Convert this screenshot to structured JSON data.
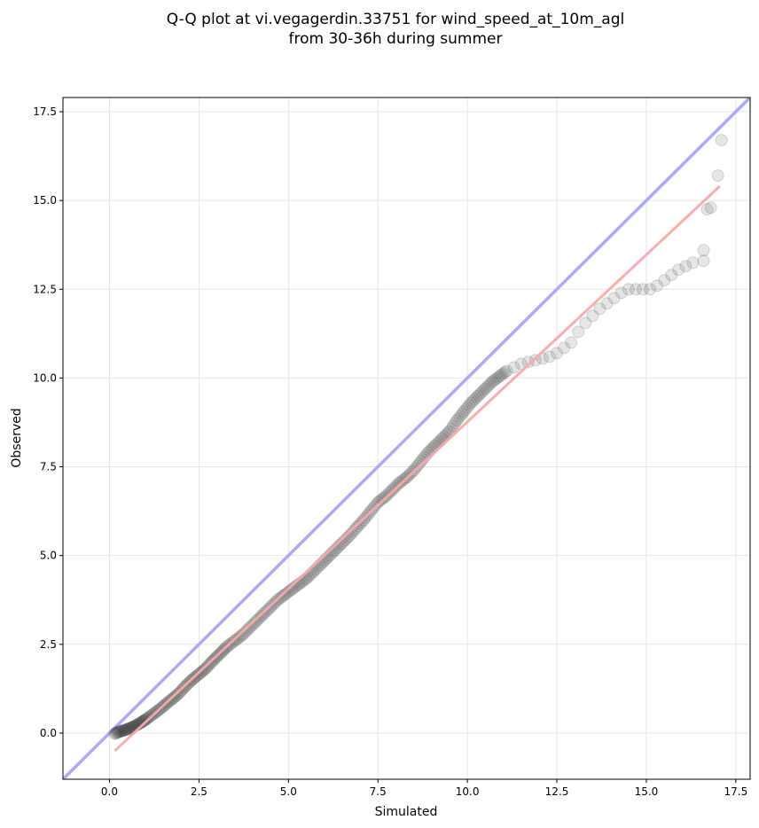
{
  "chart_data": {
    "type": "scatter",
    "title": "Q-Q plot at vi.vegagerdin.33751 for wind_speed_at_10m_agl",
    "subtitle": "from 30-36h during summer",
    "xlabel": "Simulated",
    "ylabel": "Observed",
    "xlim": [
      -1.3,
      17.9
    ],
    "ylim": [
      -1.3,
      17.9
    ],
    "xticks": [
      "0.0",
      "2.5",
      "5.0",
      "7.5",
      "10.0",
      "12.5",
      "15.0",
      "17.5"
    ],
    "yticks": [
      "0.0",
      "2.5",
      "5.0",
      "7.5",
      "10.0",
      "12.5",
      "15.0",
      "17.5"
    ],
    "tick_values": [
      0,
      2.5,
      5,
      7.5,
      10,
      12.5,
      15,
      17.5
    ],
    "grid": true,
    "identity_line": {
      "from": [
        -1.3,
        -1.3
      ],
      "to": [
        17.9,
        17.9
      ],
      "color": "#aaaaf5"
    },
    "fit_line": {
      "from": [
        0.15,
        -0.5
      ],
      "to": [
        17.05,
        15.4
      ],
      "color": "#f5aaaa"
    },
    "point_color": "#333333",
    "points": [
      [
        0.15,
        -0.02
      ],
      [
        0.25,
        0.03
      ],
      [
        0.35,
        0.06
      ],
      [
        0.45,
        0.09
      ],
      [
        0.55,
        0.13
      ],
      [
        0.65,
        0.17
      ],
      [
        0.75,
        0.22
      ],
      [
        0.85,
        0.28
      ],
      [
        0.95,
        0.34
      ],
      [
        1.05,
        0.41
      ],
      [
        1.2,
        0.52
      ],
      [
        1.35,
        0.63
      ],
      [
        1.5,
        0.75
      ],
      [
        1.65,
        0.88
      ],
      [
        1.8,
        1.0
      ],
      [
        1.95,
        1.13
      ],
      [
        2.1,
        1.3
      ],
      [
        2.25,
        1.45
      ],
      [
        2.4,
        1.58
      ],
      [
        2.55,
        1.7
      ],
      [
        2.7,
        1.83
      ],
      [
        2.85,
        2.0
      ],
      [
        3.0,
        2.15
      ],
      [
        3.15,
        2.3
      ],
      [
        3.3,
        2.45
      ],
      [
        3.5,
        2.6
      ],
      [
        3.7,
        2.75
      ],
      [
        3.9,
        2.95
      ],
      [
        4.1,
        3.15
      ],
      [
        4.3,
        3.35
      ],
      [
        4.5,
        3.55
      ],
      [
        4.7,
        3.75
      ],
      [
        4.9,
        3.9
      ],
      [
        5.1,
        4.05
      ],
      [
        5.3,
        4.2
      ],
      [
        5.5,
        4.35
      ],
      [
        5.7,
        4.55
      ],
      [
        5.9,
        4.75
      ],
      [
        6.1,
        4.95
      ],
      [
        6.3,
        5.15
      ],
      [
        6.5,
        5.35
      ],
      [
        6.7,
        5.55
      ],
      [
        6.9,
        5.78
      ],
      [
        7.1,
        6.0
      ],
      [
        7.3,
        6.25
      ],
      [
        7.5,
        6.5
      ],
      [
        7.7,
        6.65
      ],
      [
        7.9,
        6.85
      ],
      [
        8.1,
        7.05
      ],
      [
        8.3,
        7.2
      ],
      [
        8.5,
        7.4
      ],
      [
        8.7,
        7.65
      ],
      [
        8.9,
        7.9
      ],
      [
        9.1,
        8.1
      ],
      [
        9.3,
        8.3
      ],
      [
        9.5,
        8.5
      ],
      [
        9.7,
        8.8
      ],
      [
        9.9,
        9.05
      ],
      [
        10.1,
        9.3
      ],
      [
        10.3,
        9.5
      ],
      [
        10.5,
        9.7
      ],
      [
        10.7,
        9.9
      ],
      [
        10.9,
        10.05
      ],
      [
        11.1,
        10.2
      ],
      [
        11.3,
        10.3
      ],
      [
        11.5,
        10.4
      ],
      [
        11.7,
        10.45
      ],
      [
        11.9,
        10.5
      ],
      [
        12.1,
        10.55
      ],
      [
        12.3,
        10.6
      ],
      [
        12.5,
        10.7
      ],
      [
        12.7,
        10.85
      ],
      [
        12.9,
        11.0
      ],
      [
        13.1,
        11.3
      ],
      [
        13.3,
        11.55
      ],
      [
        13.5,
        11.75
      ],
      [
        13.7,
        11.95
      ],
      [
        13.9,
        12.1
      ],
      [
        14.1,
        12.25
      ],
      [
        14.3,
        12.4
      ],
      [
        14.5,
        12.5
      ],
      [
        14.7,
        12.5
      ],
      [
        14.9,
        12.5
      ],
      [
        15.1,
        12.5
      ],
      [
        15.3,
        12.6
      ],
      [
        15.5,
        12.75
      ],
      [
        15.7,
        12.9
      ],
      [
        15.9,
        13.05
      ],
      [
        16.1,
        13.15
      ],
      [
        16.3,
        13.25
      ],
      [
        16.6,
        13.3
      ],
      [
        16.6,
        13.6
      ],
      [
        16.7,
        14.75
      ],
      [
        16.8,
        14.8
      ],
      [
        17.0,
        15.7
      ],
      [
        17.1,
        16.7
      ]
    ]
  }
}
